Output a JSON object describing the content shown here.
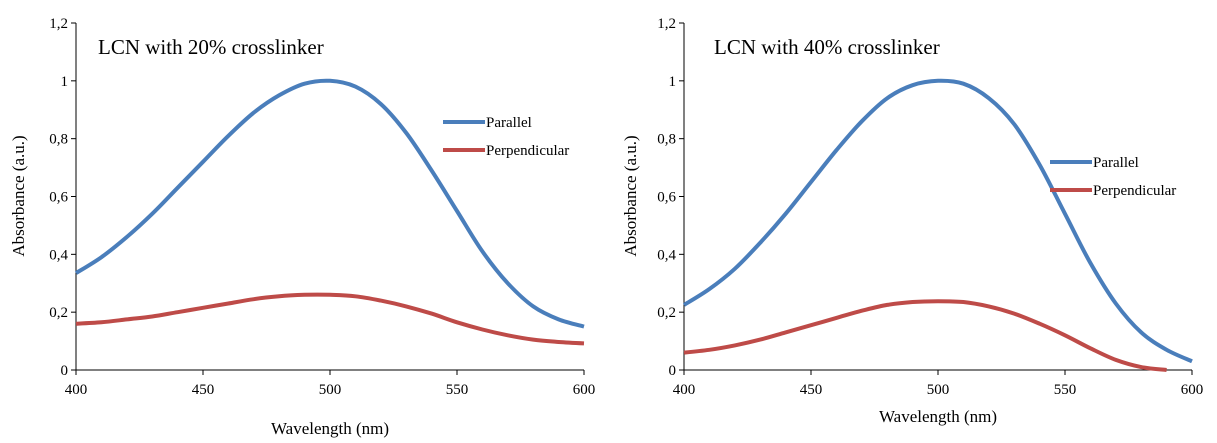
{
  "chart_data": [
    {
      "type": "line",
      "title": "LCN with 20% crosslinker",
      "xlabel": "Wavelength (nm)",
      "ylabel": "Absorbance (a.u.)",
      "xlim": [
        400,
        600
      ],
      "ylim": [
        0,
        1.2
      ],
      "xticks": [
        "400",
        "450",
        "500",
        "550",
        "600"
      ],
      "yticks": [
        "0",
        "0,2",
        "0,4",
        "0,6",
        "0,8",
        "1",
        "1,2"
      ],
      "grid": false,
      "legend_position": "right",
      "series": [
        {
          "name": "Parallel",
          "color": "#4A7EBB",
          "x": [
            400,
            410,
            420,
            430,
            440,
            450,
            460,
            470,
            480,
            490,
            500,
            510,
            520,
            530,
            540,
            550,
            560,
            570,
            580,
            590,
            600
          ],
          "y": [
            0.335,
            0.39,
            0.46,
            0.54,
            0.63,
            0.72,
            0.81,
            0.89,
            0.95,
            0.99,
            1.0,
            0.98,
            0.92,
            0.82,
            0.69,
            0.55,
            0.41,
            0.3,
            0.22,
            0.175,
            0.15
          ]
        },
        {
          "name": "Perpendicular",
          "color": "#BE4B48",
          "x": [
            400,
            410,
            420,
            430,
            440,
            450,
            460,
            470,
            480,
            490,
            500,
            510,
            520,
            530,
            540,
            550,
            560,
            570,
            580,
            590,
            600
          ],
          "y": [
            0.16,
            0.165,
            0.175,
            0.185,
            0.2,
            0.215,
            0.23,
            0.245,
            0.255,
            0.26,
            0.26,
            0.255,
            0.24,
            0.22,
            0.195,
            0.165,
            0.14,
            0.12,
            0.105,
            0.097,
            0.092
          ]
        }
      ]
    },
    {
      "type": "line",
      "title": "LCN with 40% crosslinker",
      "xlabel": "Wavelength (nm)",
      "ylabel": "Absorbance (a.u.)",
      "xlim": [
        400,
        600
      ],
      "ylim": [
        0,
        1.2
      ],
      "xticks": [
        "400",
        "450",
        "500",
        "550",
        "600"
      ],
      "yticks": [
        "0",
        "0,2",
        "0,4",
        "0,6",
        "0,8",
        "1",
        "1,2"
      ],
      "grid": false,
      "legend_position": "right",
      "series": [
        {
          "name": "Parallel",
          "color": "#4A7EBB",
          "x": [
            400,
            410,
            420,
            430,
            440,
            450,
            460,
            470,
            480,
            490,
            500,
            510,
            520,
            530,
            540,
            550,
            560,
            570,
            580,
            590,
            600
          ],
          "y": [
            0.225,
            0.28,
            0.35,
            0.44,
            0.54,
            0.65,
            0.76,
            0.86,
            0.94,
            0.985,
            1.0,
            0.99,
            0.94,
            0.85,
            0.71,
            0.54,
            0.37,
            0.23,
            0.13,
            0.07,
            0.03
          ]
        },
        {
          "name": "Perpendicular",
          "color": "#BE4B48",
          "x": [
            400,
            410,
            420,
            430,
            440,
            450,
            460,
            470,
            480,
            490,
            500,
            510,
            520,
            530,
            540,
            550,
            560,
            570,
            580,
            590
          ],
          "y": [
            0.06,
            0.07,
            0.085,
            0.105,
            0.13,
            0.155,
            0.18,
            0.205,
            0.225,
            0.235,
            0.238,
            0.235,
            0.22,
            0.195,
            0.16,
            0.12,
            0.075,
            0.035,
            0.01,
            0.0
          ]
        }
      ]
    }
  ]
}
